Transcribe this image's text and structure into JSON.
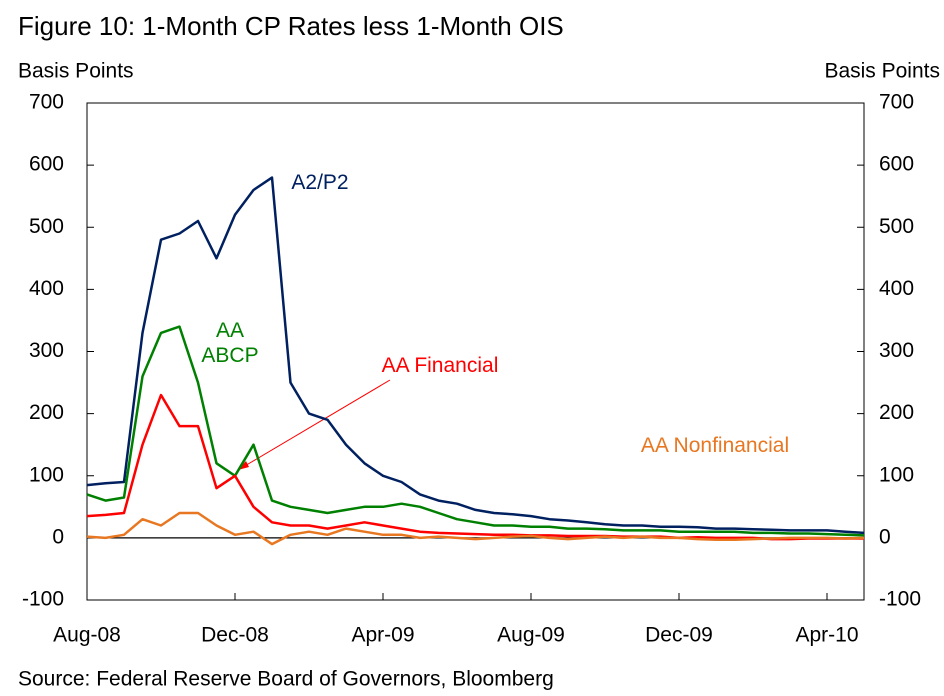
{
  "chart_data": {
    "type": "line",
    "title": "Figure 10: 1-Month CP Rates less 1-Month OIS",
    "y_label": "Basis Points",
    "y2_label": "Basis Points",
    "source": "Source: Federal Reserve Board of Governors, Bloomberg",
    "categories": [
      "Aug-08",
      null,
      null,
      null,
      null,
      null,
      null,
      null,
      "Dec-08",
      null,
      null,
      null,
      null,
      null,
      null,
      null,
      "Apr-09",
      null,
      null,
      null,
      null,
      null,
      null,
      null,
      "Aug-09",
      null,
      null,
      null,
      null,
      null,
      null,
      null,
      "Dec-09",
      null,
      null,
      null,
      null,
      null,
      null,
      null,
      "Apr-10",
      null,
      null
    ],
    "ylim": [
      -100,
      700
    ],
    "yticks": [
      -100,
      0,
      100,
      200,
      300,
      400,
      500,
      600,
      700
    ],
    "y2lim": [
      -100,
      700
    ],
    "y2ticks": [
      -100,
      0,
      100,
      200,
      300,
      400,
      500,
      600,
      700
    ],
    "grid": false,
    "series": [
      {
        "name": "A2/P2",
        "color": "#002060",
        "values": [
          85,
          88,
          90,
          330,
          480,
          490,
          510,
          450,
          520,
          560,
          580,
          250,
          200,
          190,
          150,
          120,
          100,
          90,
          70,
          60,
          55,
          45,
          40,
          38,
          35,
          30,
          28,
          25,
          22,
          20,
          20,
          18,
          18,
          17,
          15,
          15,
          14,
          13,
          12,
          12,
          12,
          10,
          8
        ]
      },
      {
        "name": "AA ABCP",
        "color": "#008000",
        "values": [
          70,
          60,
          65,
          260,
          330,
          340,
          250,
          120,
          100,
          150,
          60,
          50,
          45,
          40,
          45,
          50,
          50,
          55,
          50,
          40,
          30,
          25,
          20,
          20,
          18,
          18,
          15,
          15,
          14,
          12,
          12,
          12,
          10,
          10,
          10,
          10,
          8,
          8,
          7,
          7,
          6,
          5,
          4
        ]
      },
      {
        "name": "AA Financial",
        "color": "#ff0000",
        "values": [
          35,
          37,
          40,
          150,
          230,
          180,
          180,
          80,
          100,
          50,
          25,
          20,
          20,
          15,
          20,
          25,
          20,
          15,
          10,
          8,
          7,
          6,
          5,
          5,
          4,
          4,
          3,
          3,
          3,
          2,
          2,
          2,
          0,
          1,
          0,
          0,
          0,
          -2,
          -2,
          -1,
          -1,
          -1,
          -1
        ]
      },
      {
        "name": "AA Nonfinancial",
        "color": "#e87722",
        "values": [
          2,
          0,
          5,
          30,
          20,
          40,
          40,
          20,
          5,
          10,
          -10,
          5,
          10,
          5,
          15,
          10,
          5,
          5,
          0,
          2,
          0,
          -2,
          0,
          2,
          3,
          0,
          -2,
          0,
          2,
          0,
          2,
          0,
          0,
          -2,
          -3,
          -3,
          -2,
          -1,
          0,
          0,
          0,
          -1,
          0
        ]
      }
    ]
  }
}
